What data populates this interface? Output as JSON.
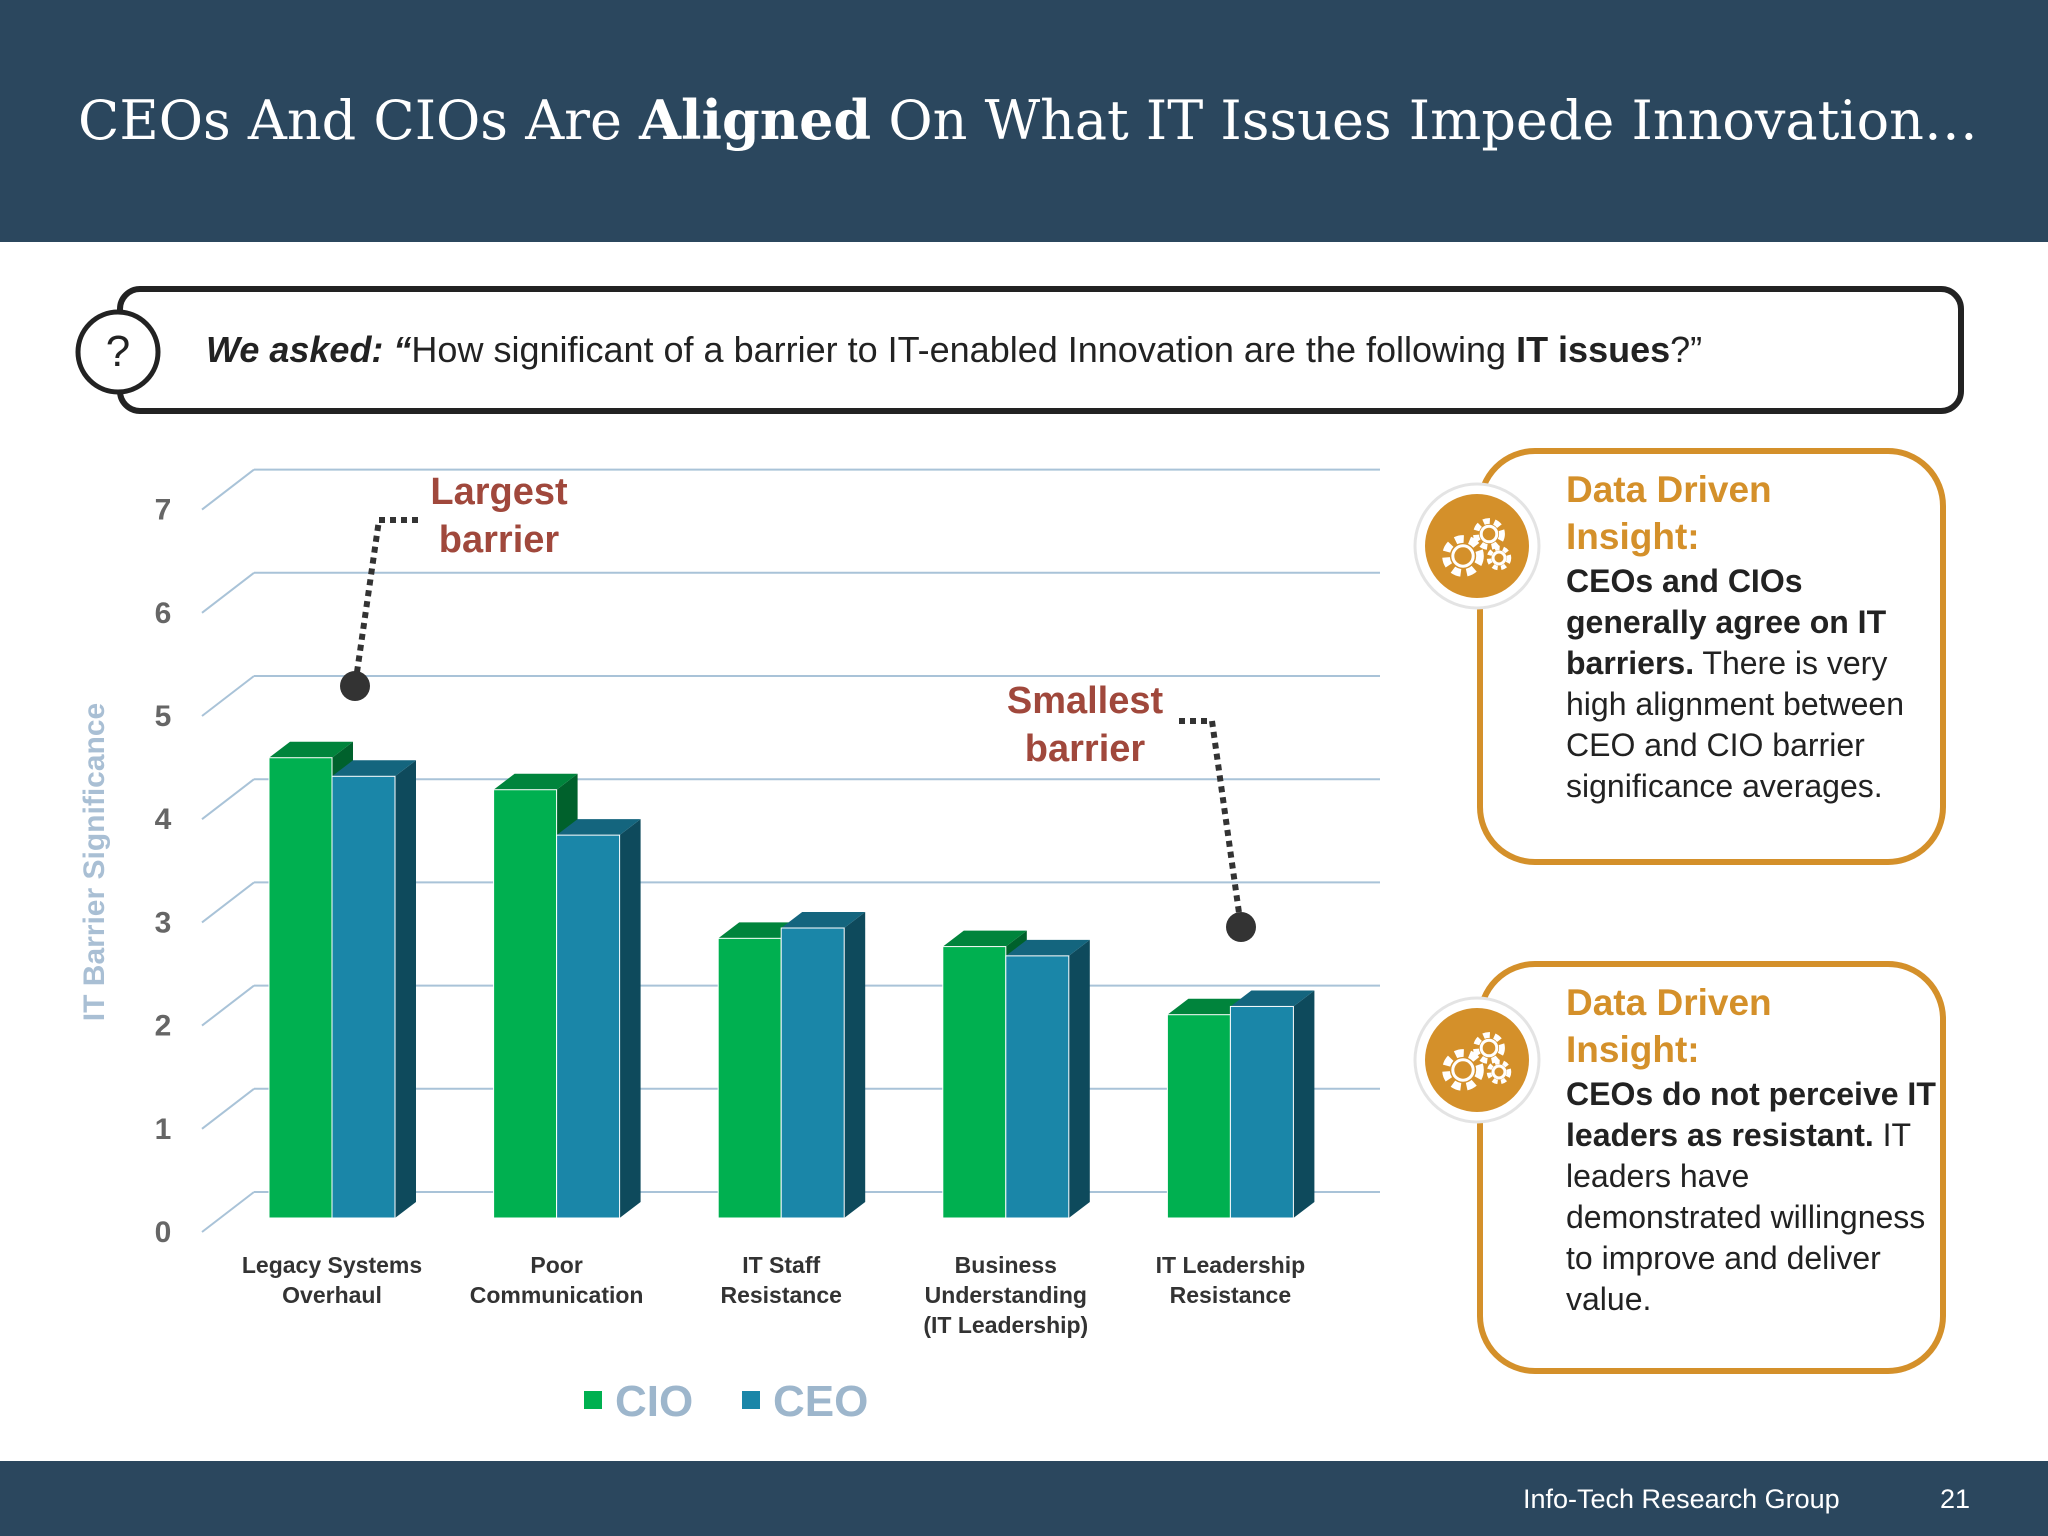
{
  "header": {
    "title_parts": [
      "CEOs And CIOs Are ",
      "Aligned",
      " On What IT Issues Impede Innovation…"
    ]
  },
  "question": {
    "parts": [
      "We asked: “",
      "How significant of a barrier to IT-enabled Innovation are the following ",
      "IT issues",
      "?”"
    ]
  },
  "chart_data": {
    "type": "bar",
    "y_label": "IT Barrier Significance",
    "categories": [
      "Legacy Systems\nOverhaul",
      "Poor\nCommunication",
      "IT Staff\nResistance",
      "Business\nUnderstanding\n(IT Leadership)",
      "IT Leadership\nResistance"
    ],
    "series": [
      {
        "name": "CIO",
        "color": "#00b050",
        "values": [
          4.46,
          4.15,
          2.71,
          2.63,
          1.97
        ]
      },
      {
        "name": "CEO",
        "color": "#1a86a8",
        "values": [
          4.28,
          3.71,
          2.81,
          2.54,
          2.05
        ]
      }
    ],
    "ylim": [
      0,
      7
    ],
    "yticks": [
      0,
      1,
      2,
      3,
      4,
      5,
      6,
      7
    ],
    "grid": true,
    "annotations": [
      "Largest\nbarrier",
      "Smallest\nbarrier"
    ]
  },
  "insights": [
    {
      "title": "Data Driven Insight:",
      "bold": "CEOs and CIOs generally agree on IT barriers.",
      "text": " There is very high alignment between CEO and CIO barrier significance averages."
    },
    {
      "title": "Data Driven Insight:",
      "bold": "CEOs do not perceive IT leaders as resistant.",
      "text": " IT leaders have demonstrated willingness to improve and deliver value."
    }
  ],
  "footer": {
    "org": "Info-Tech Research Group",
    "page": "21"
  }
}
